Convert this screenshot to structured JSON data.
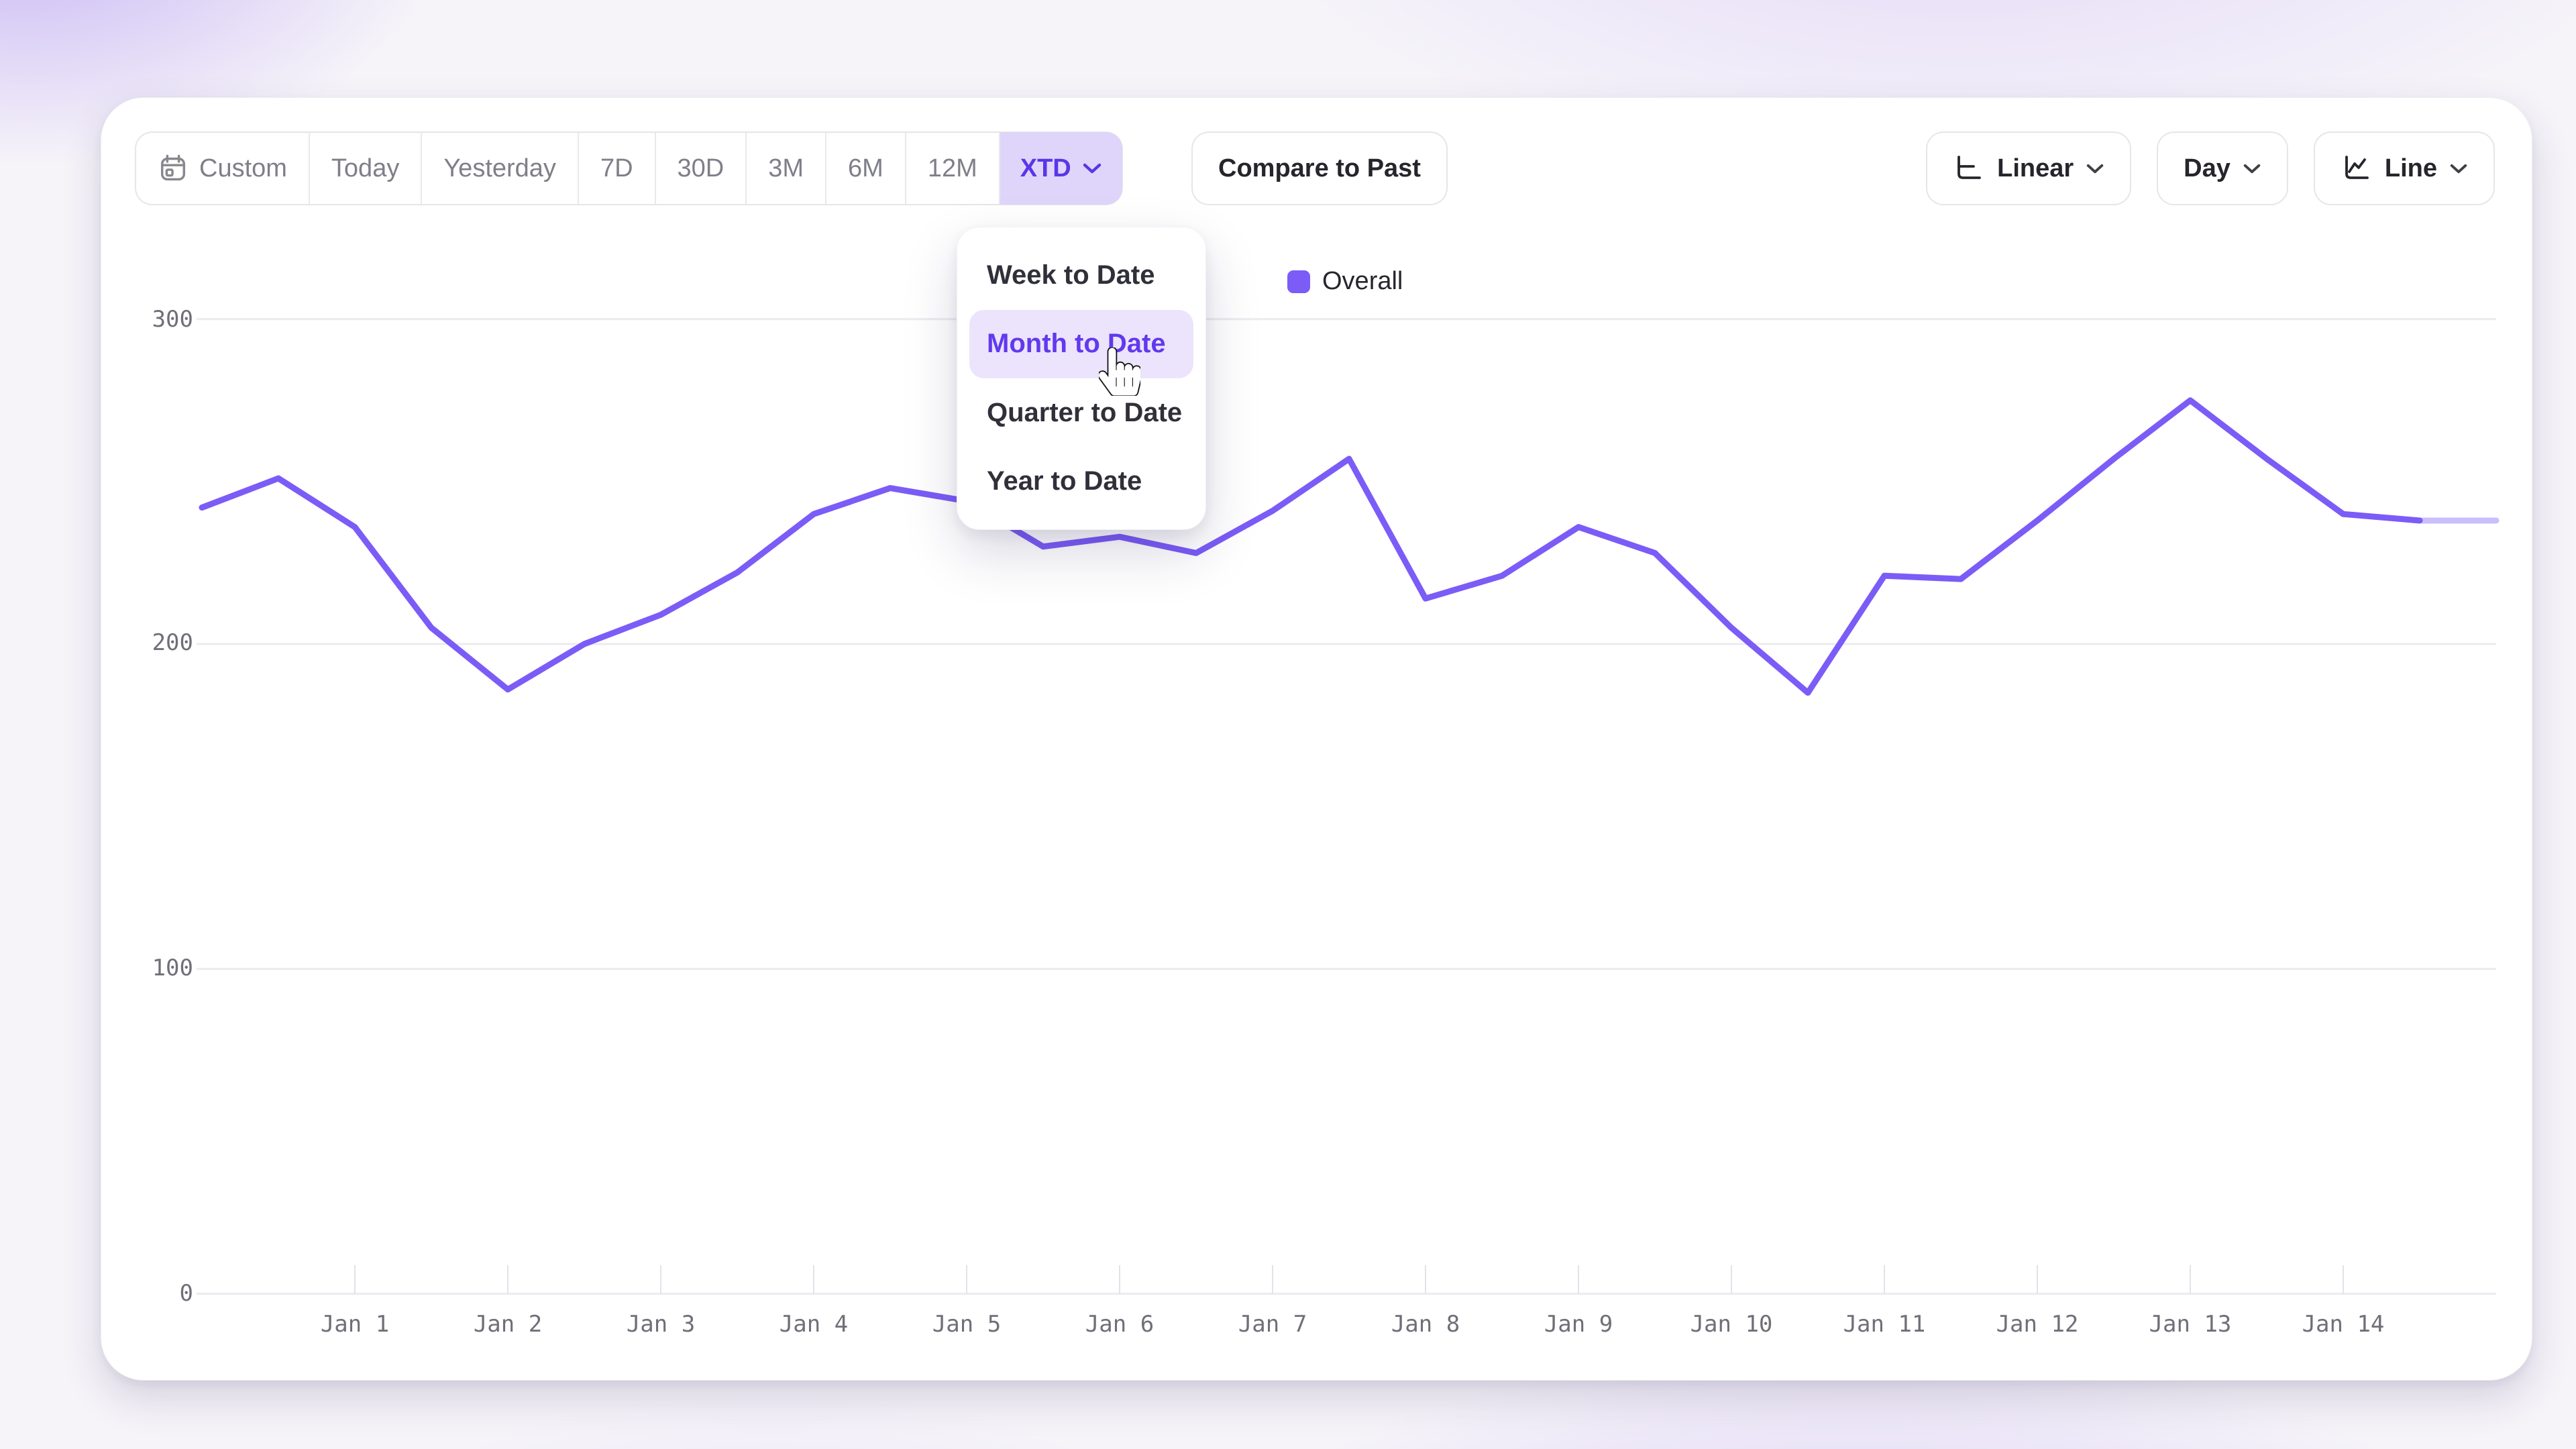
{
  "toolbar": {
    "range_buttons": [
      {
        "label": "Custom",
        "icon": "calendar"
      },
      {
        "label": "Today"
      },
      {
        "label": "Yesterday"
      },
      {
        "label": "7D"
      },
      {
        "label": "30D"
      },
      {
        "label": "3M"
      },
      {
        "label": "6M"
      },
      {
        "label": "12M"
      },
      {
        "label": "XTD",
        "active": true,
        "has_dropdown": true
      }
    ],
    "compare_label": "Compare to Past",
    "scale_button": {
      "label": "Linear",
      "icon": "axis"
    },
    "interval_button": {
      "label": "Day"
    },
    "chart_type_button": {
      "label": "Line",
      "icon": "line-chart"
    }
  },
  "dropdown": {
    "items": [
      {
        "label": "Week to Date",
        "highlighted": false
      },
      {
        "label": "Month to Date",
        "highlighted": true
      },
      {
        "label": "Quarter to Date",
        "highlighted": false
      },
      {
        "label": "Year to Date",
        "highlighted": false
      }
    ]
  },
  "legend": {
    "label": "Overall",
    "color": "#7B5CF7"
  },
  "chart_data": {
    "type": "line",
    "title": "",
    "xlabel": "",
    "ylabel": "",
    "x_tick_labels": [
      "Jan 1",
      "Jan 2",
      "Jan 3",
      "Jan 4",
      "Jan 5",
      "Jan 6",
      "Jan 7",
      "Jan 8",
      "Jan 9",
      "Jan 10",
      "Jan 11",
      "Jan 12",
      "Jan 13",
      "Jan 14"
    ],
    "points_per_day": 2,
    "first_tick_point_index": 2,
    "y_ticks": [
      0,
      100,
      200,
      300
    ],
    "ylim": [
      0,
      320
    ],
    "grid": "horizontal",
    "legend_position": "top-center",
    "series": [
      {
        "name": "Overall",
        "color": "#7B5CF7",
        "values": [
          242,
          251,
          236,
          205,
          186,
          200,
          209,
          222,
          240,
          248,
          244,
          230,
          233,
          228,
          241,
          257,
          214,
          221,
          236,
          228,
          205,
          185,
          221,
          220,
          238,
          257,
          275,
          257,
          240,
          238,
          238
        ],
        "faded_tail_points": 1
      }
    ]
  }
}
